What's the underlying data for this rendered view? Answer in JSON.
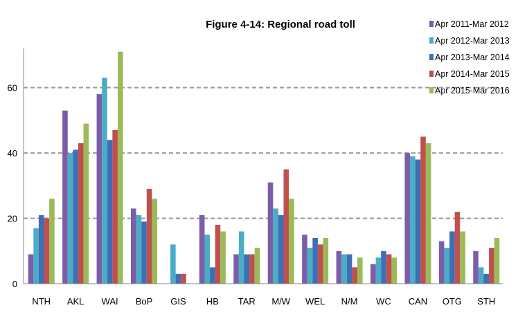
{
  "chart_data": {
    "type": "bar",
    "title": "Figure 4-14: Regional road toll",
    "xlabel": "",
    "ylabel": "",
    "ylim": [
      0,
      72
    ],
    "yticks": [
      0,
      20,
      40,
      60
    ],
    "grid": "horizontal-dashed",
    "legend_position": "top-right",
    "categories": [
      "NTH",
      "AKL",
      "WAI",
      "BoP",
      "GIS",
      "HB",
      "TAR",
      "M/W",
      "WEL",
      "N/M",
      "WC",
      "CAN",
      "OTG",
      "STH"
    ],
    "series": [
      {
        "name": "Apr 2011-Mar 2012",
        "color": "#7b5ea7",
        "values": [
          9,
          53,
          58,
          23,
          0,
          21,
          9,
          31,
          15,
          10,
          6,
          40,
          13,
          10
        ]
      },
      {
        "name": "Apr 2012-Mar 2013",
        "color": "#4bacc6",
        "values": [
          17,
          40,
          63,
          21,
          12,
          15,
          16,
          23,
          11,
          9,
          8,
          39,
          11,
          5
        ]
      },
      {
        "name": "Apr 2013-Mar 2014",
        "color": "#3d6fb5",
        "values": [
          21,
          41,
          44,
          19,
          3,
          5,
          9,
          21,
          14,
          9,
          10,
          38,
          16,
          3
        ]
      },
      {
        "name": "Apr 2014-Mar 2015",
        "color": "#c0504d",
        "values": [
          20,
          43,
          47,
          29,
          3,
          18,
          9,
          35,
          12,
          5,
          9,
          45,
          22,
          11
        ]
      },
      {
        "name": "Apr 2015-Mar 2016",
        "color": "#9bbb59",
        "values": [
          26,
          49,
          71,
          26,
          0,
          16,
          11,
          26,
          14,
          8,
          8,
          43,
          16,
          14
        ]
      }
    ]
  }
}
